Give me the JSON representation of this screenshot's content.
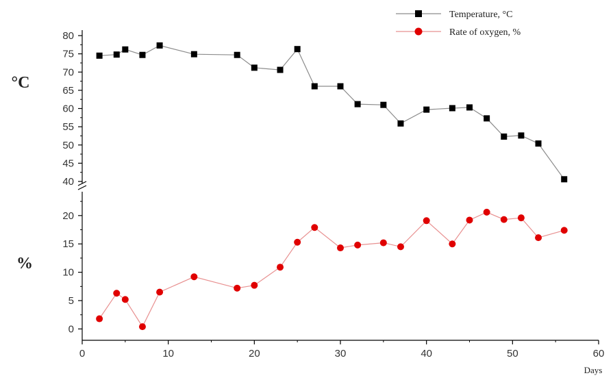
{
  "chart_data": {
    "type": "line",
    "xlabel": "Days",
    "xlim": [
      0,
      60
    ],
    "x_ticks": [
      0,
      10,
      20,
      30,
      40,
      50,
      60
    ],
    "legend_placement": "top-right",
    "grid": false,
    "panels": [
      {
        "series": "Temperature, °C",
        "ylabel": "°C",
        "ylim": [
          40,
          80
        ],
        "y_ticks": [
          40,
          45,
          50,
          55,
          60,
          65,
          70,
          75,
          80
        ],
        "color": "#000000",
        "marker": "square",
        "line_color": "#8c8c8c"
      },
      {
        "series": "Rate of oxygen, %",
        "ylabel": "%",
        "ylim": [
          -2,
          23
        ],
        "y_ticks": [
          0,
          5,
          10,
          15,
          20
        ],
        "color": "#e00000",
        "marker": "circle",
        "line_color": "#e89090"
      }
    ],
    "series": [
      {
        "name": "Temperature, °C",
        "x": [
          2,
          4,
          5,
          7,
          9,
          13,
          18,
          20,
          23,
          25,
          27,
          30,
          32,
          35,
          37,
          40,
          43,
          45,
          47,
          49,
          51,
          53,
          56
        ],
        "y": [
          74.5,
          74.8,
          76.2,
          74.7,
          77.3,
          74.9,
          74.7,
          71.2,
          70.6,
          76.3,
          66.1,
          66.1,
          61.2,
          61.0,
          55.9,
          59.7,
          60.1,
          60.3,
          57.3,
          52.3,
          52.6,
          50.4,
          40.6
        ]
      },
      {
        "name": "Rate of oxygen, %",
        "x": [
          2,
          4,
          5,
          7,
          9,
          13,
          18,
          20,
          23,
          25,
          27,
          30,
          32,
          35,
          37,
          40,
          43,
          45,
          47,
          49,
          51,
          53,
          56
        ],
        "y": [
          1.8,
          6.3,
          5.2,
          0.4,
          6.5,
          9.2,
          7.2,
          7.7,
          10.9,
          15.3,
          17.9,
          14.3,
          14.8,
          15.2,
          14.5,
          19.1,
          15.0,
          19.2,
          20.6,
          19.3,
          19.6,
          16.1,
          17.4
        ]
      }
    ]
  }
}
